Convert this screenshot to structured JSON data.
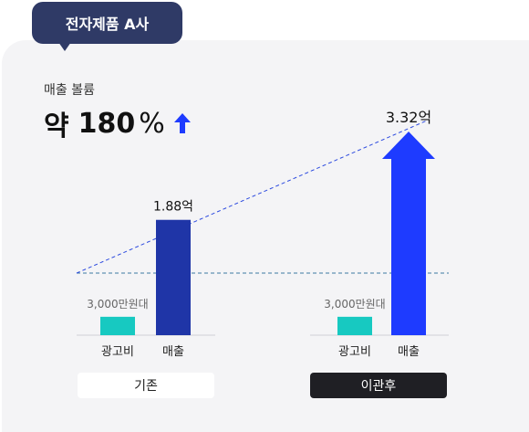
{
  "company_tag": "전자제품 A사",
  "metric_label": "매출 볼륨",
  "headline": {
    "prefix": "약",
    "value": "180",
    "unit": "%"
  },
  "colors": {
    "ad": "#17c9c1",
    "sales_before": "#1f35a7",
    "sales_after": "#1e3bff",
    "tag": "#2f3a66",
    "dash": "#2c4adf",
    "baseline_dash": "#3c7aa1"
  },
  "chart_data": {
    "type": "bar",
    "groups": [
      {
        "label": "기존",
        "bars": [
          {
            "category": "광고비",
            "value": 0.3,
            "label": "3,000만원대",
            "color": "#17c9c1"
          },
          {
            "category": "매출",
            "value": 1.88,
            "label": "1.88억",
            "color": "#1f35a7"
          }
        ]
      },
      {
        "label": "이관후",
        "bars": [
          {
            "category": "광고비",
            "value": 0.3,
            "label": "3,000만원대",
            "color": "#17c9c1"
          },
          {
            "category": "매출",
            "value": 3.32,
            "label": "3.32억",
            "color": "#1e3bff"
          }
        ]
      }
    ]
  }
}
